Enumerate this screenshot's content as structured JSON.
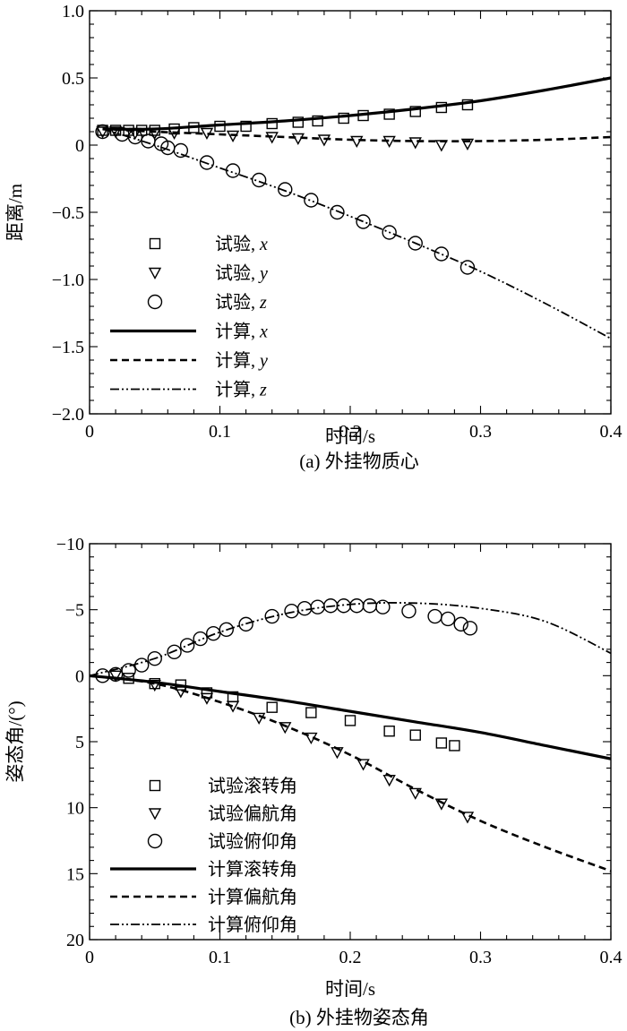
{
  "chart_data": [
    {
      "type": "line",
      "caption": "(a) 外挂物质心",
      "xlabel": "时间/s",
      "ylabel": "距离/m",
      "xlim": [
        0,
        0.4
      ],
      "ylim": [
        -2.0,
        1.0
      ],
      "y_inverted": false,
      "xticks": [
        "0",
        "0.1",
        "0.2",
        "0.3",
        "0.4"
      ],
      "xtick_values": [
        0,
        0.1,
        0.2,
        0.3,
        0.4
      ],
      "yticks": [
        "1.0",
        "0.5",
        "0",
        "−0.5",
        "−1.0",
        "−1.5",
        "−2.0"
      ],
      "ytick_values": [
        1.0,
        0.5,
        0,
        -0.5,
        -1.0,
        -1.5,
        -2.0
      ],
      "legend_position": "bottom-left",
      "series": [
        {
          "name": "试验, x",
          "label_main": "试验",
          "label_var": "x",
          "style": "square",
          "x": [
            0.01,
            0.02,
            0.03,
            0.04,
            0.05,
            0.065,
            0.08,
            0.1,
            0.12,
            0.14,
            0.16,
            0.175,
            0.195,
            0.21,
            0.23,
            0.25,
            0.27,
            0.29
          ],
          "y": [
            0.11,
            0.11,
            0.11,
            0.11,
            0.11,
            0.12,
            0.13,
            0.14,
            0.14,
            0.16,
            0.17,
            0.18,
            0.2,
            0.22,
            0.23,
            0.25,
            0.28,
            0.3
          ]
        },
        {
          "name": "试验, y",
          "label_main": "试验",
          "label_var": "y",
          "style": "triangle",
          "x": [
            0.01,
            0.02,
            0.035,
            0.05,
            0.065,
            0.09,
            0.11,
            0.14,
            0.16,
            0.18,
            0.205,
            0.23,
            0.25,
            0.27,
            0.29
          ],
          "y": [
            0.1,
            0.1,
            0.09,
            0.09,
            0.09,
            0.09,
            0.07,
            0.06,
            0.05,
            0.04,
            0.03,
            0.03,
            0.02,
            0.0,
            0.01
          ]
        },
        {
          "name": "试验, z",
          "label_main": "试验",
          "label_var": "z",
          "style": "circle",
          "x": [
            0.01,
            0.025,
            0.035,
            0.045,
            0.055,
            0.06,
            0.07,
            0.09,
            0.11,
            0.13,
            0.15,
            0.17,
            0.19,
            0.21,
            0.23,
            0.25,
            0.27,
            0.29
          ],
          "y": [
            0.1,
            0.08,
            0.06,
            0.03,
            0.01,
            -0.02,
            -0.04,
            -0.13,
            -0.19,
            -0.26,
            -0.33,
            -0.41,
            -0.5,
            -0.57,
            -0.65,
            -0.73,
            -0.81,
            -0.91
          ]
        },
        {
          "name": "计算, x",
          "label_main": "计算",
          "label_var": "x",
          "style": "solid",
          "x": [
            0.01,
            0.05,
            0.1,
            0.15,
            0.2,
            0.25,
            0.3,
            0.35,
            0.4
          ],
          "y": [
            0.12,
            0.12,
            0.15,
            0.18,
            0.22,
            0.27,
            0.33,
            0.41,
            0.5
          ]
        },
        {
          "name": "计算, y",
          "label_main": "计算",
          "label_var": "y",
          "style": "dash",
          "x": [
            0.01,
            0.05,
            0.1,
            0.15,
            0.2,
            0.25,
            0.3,
            0.35,
            0.4
          ],
          "y": [
            0.12,
            0.1,
            0.08,
            0.06,
            0.04,
            0.03,
            0.03,
            0.04,
            0.06
          ]
        },
        {
          "name": "计算, z",
          "label_main": "计算",
          "label_var": "z",
          "style": "dashdot",
          "x": [
            0.01,
            0.05,
            0.1,
            0.15,
            0.2,
            0.25,
            0.3,
            0.35,
            0.4
          ],
          "y": [
            0.12,
            0.0,
            -0.17,
            -0.34,
            -0.53,
            -0.73,
            -0.94,
            -1.18,
            -1.44
          ]
        }
      ]
    },
    {
      "type": "line",
      "caption": "(b) 外挂物姿态角",
      "xlabel": "时间/s",
      "ylabel": "姿态角/(°)",
      "xlim": [
        0,
        0.4
      ],
      "ylim": [
        20,
        -10
      ],
      "y_inverted": true,
      "xticks": [
        "0",
        "0.1",
        "0.2",
        "0.3",
        "0.4"
      ],
      "xtick_values": [
        0,
        0.1,
        0.2,
        0.3,
        0.4
      ],
      "yticks": [
        "−10",
        "−5",
        "0",
        "5",
        "10",
        "15",
        "20"
      ],
      "ytick_values": [
        -10,
        -5,
        0,
        5,
        10,
        15,
        20
      ],
      "legend_position": "bottom-left",
      "series": [
        {
          "name": "试验滚转角",
          "style": "square",
          "x": [
            0.03,
            0.05,
            0.07,
            0.09,
            0.11,
            0.14,
            0.17,
            0.2,
            0.23,
            0.25,
            0.27,
            0.28
          ],
          "y": [
            0.2,
            0.6,
            0.7,
            1.3,
            1.6,
            2.4,
            2.8,
            3.4,
            4.2,
            4.5,
            5.1,
            5.3
          ]
        },
        {
          "name": "试验偏航角",
          "style": "triangle",
          "x": [
            0.02,
            0.05,
            0.07,
            0.09,
            0.11,
            0.13,
            0.15,
            0.17,
            0.19,
            0.21,
            0.23,
            0.25,
            0.27,
            0.29
          ],
          "y": [
            0.0,
            0.7,
            1.2,
            1.7,
            2.3,
            3.2,
            3.9,
            4.7,
            5.8,
            6.7,
            7.9,
            8.9,
            9.7,
            10.7
          ]
        },
        {
          "name": "试验俯仰角",
          "style": "circle",
          "x": [
            0.01,
            0.02,
            0.03,
            0.04,
            0.05,
            0.065,
            0.075,
            0.085,
            0.095,
            0.105,
            0.12,
            0.14,
            0.155,
            0.165,
            0.175,
            0.185,
            0.195,
            0.205,
            0.215,
            0.225,
            0.245,
            0.265,
            0.275,
            0.285,
            0.292
          ],
          "y": [
            0.0,
            -0.1,
            -0.4,
            -0.8,
            -1.3,
            -1.8,
            -2.3,
            -2.8,
            -3.2,
            -3.5,
            -3.9,
            -4.5,
            -4.9,
            -5.1,
            -5.2,
            -5.3,
            -5.3,
            -5.3,
            -5.3,
            -5.2,
            -4.9,
            -4.5,
            -4.3,
            -3.9,
            -3.6
          ]
        },
        {
          "name": "计算滚转角",
          "style": "solid",
          "x": [
            0.0,
            0.05,
            0.1,
            0.15,
            0.2,
            0.25,
            0.3,
            0.35,
            0.4
          ],
          "y": [
            0.0,
            0.5,
            1.2,
            1.9,
            2.7,
            3.5,
            4.3,
            5.3,
            6.3
          ]
        },
        {
          "name": "计算偏航角",
          "style": "dash",
          "x": [
            0.0,
            0.05,
            0.1,
            0.15,
            0.2,
            0.25,
            0.3,
            0.35,
            0.4
          ],
          "y": [
            0.0,
            0.6,
            2.0,
            3.8,
            6.0,
            8.6,
            11.0,
            13.0,
            14.8
          ]
        },
        {
          "name": "计算俯仰角",
          "style": "dashdot",
          "x": [
            0.0,
            0.05,
            0.1,
            0.15,
            0.2,
            0.25,
            0.3,
            0.35,
            0.4
          ],
          "y": [
            0.0,
            -1.3,
            -3.3,
            -4.7,
            -5.4,
            -5.5,
            -5.1,
            -4.1,
            -1.7
          ]
        }
      ]
    }
  ]
}
